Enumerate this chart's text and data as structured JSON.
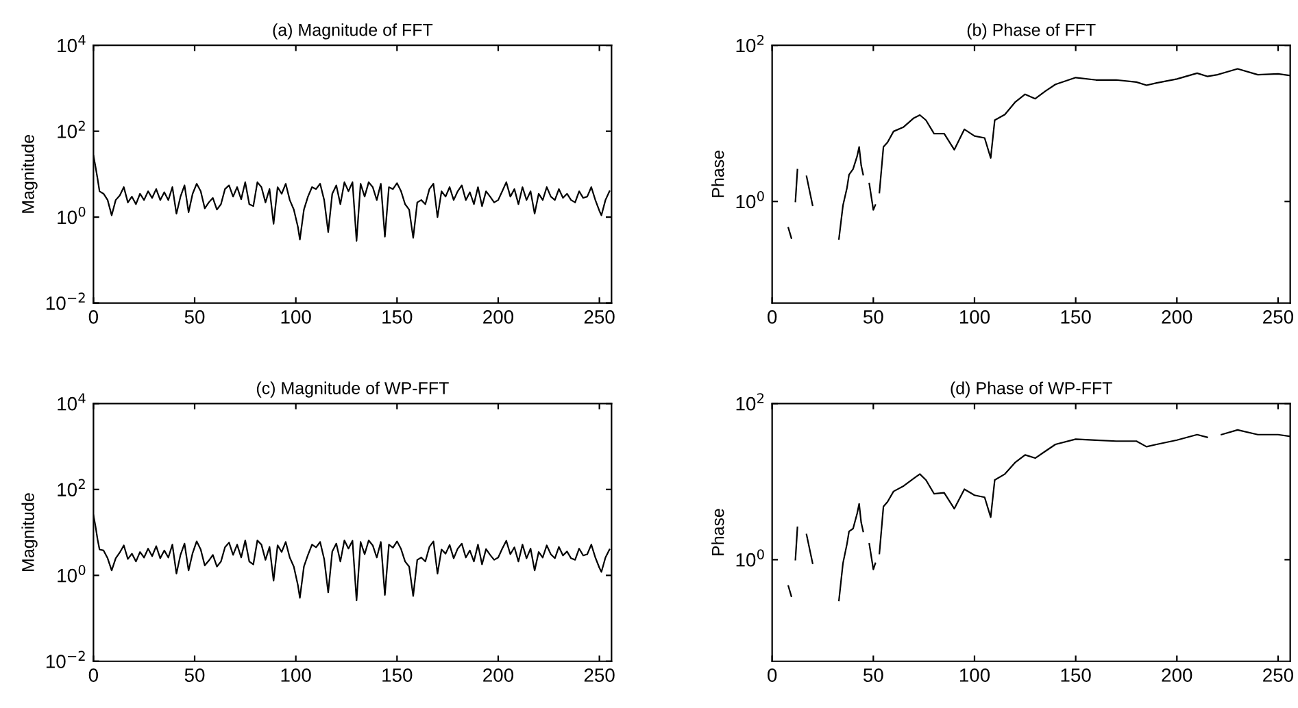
{
  "chart_data": [
    {
      "type": "line",
      "title": "(a) Magnitude of FFT",
      "ylabel": "Magnitude",
      "log": true,
      "xlim": [
        0,
        256
      ],
      "xticks": [
        0,
        50,
        100,
        150,
        200,
        250
      ],
      "ylim": [
        0.01,
        10000
      ],
      "yticks": [
        {
          "value": 0.01,
          "label": "10$^{−2}$"
        },
        {
          "value": 1,
          "label": "10$^{0}$"
        },
        {
          "value": 100,
          "label": "10$^{2}$"
        },
        {
          "value": 10000,
          "label": "10$^{4}$"
        }
      ],
      "series": [
        {
          "color": "#000000",
          "x": [
            0,
            1,
            2,
            3,
            5,
            7,
            9,
            11,
            13,
            15,
            17,
            19,
            21,
            23,
            25,
            27,
            29,
            31,
            33,
            35,
            37,
            39,
            41,
            43,
            45,
            47,
            49,
            51,
            53,
            55,
            57,
            59,
            61,
            63,
            65,
            67,
            69,
            71,
            73,
            75,
            77,
            79,
            81,
            83,
            85,
            87,
            89,
            91,
            93,
            95,
            97,
            99,
            101,
            102,
            104,
            106,
            108,
            110,
            112,
            114,
            116,
            118,
            120,
            122,
            124,
            126,
            128,
            130,
            132,
            134,
            136,
            138,
            140,
            142,
            144,
            146,
            148,
            150,
            152,
            154,
            156,
            158,
            160,
            162,
            164,
            166,
            168,
            170,
            172,
            174,
            176,
            178,
            180,
            182,
            184,
            186,
            188,
            190,
            192,
            194,
            196,
            198,
            200,
            202,
            204,
            206,
            208,
            210,
            212,
            214,
            216,
            218,
            220,
            222,
            224,
            226,
            228,
            230,
            232,
            234,
            236,
            238,
            240,
            242,
            244,
            246,
            248,
            250,
            251,
            253,
            255
          ],
          "values": [
            27,
            15,
            8,
            4,
            3.5,
            2.5,
            1.1,
            2.5,
            3.2,
            5,
            2.2,
            3,
            2,
            3.5,
            2.5,
            4,
            2.8,
            4.5,
            2.5,
            3.8,
            2.5,
            5,
            1.2,
            3,
            5.5,
            1.3,
            3.5,
            6,
            4,
            1.6,
            2.2,
            2.8,
            1.5,
            2,
            4.5,
            5.5,
            3,
            5,
            2.6,
            6.5,
            2,
            1.8,
            6.5,
            5,
            2.2,
            4.5,
            0.7,
            5,
            3.5,
            6,
            2.5,
            1.5,
            0.6,
            0.3,
            1.5,
            3,
            5,
            4.5,
            6,
            2.5,
            0.45,
            3.5,
            5.5,
            2,
            6.5,
            4,
            6.5,
            0.28,
            6,
            3,
            6.5,
            5,
            2.5,
            6,
            0.35,
            5,
            4.5,
            6.2,
            4,
            2,
            1.5,
            0.33,
            2.2,
            2.5,
            2,
            4.5,
            6,
            1,
            4,
            3,
            5,
            2.5,
            4,
            5.5,
            2.5,
            3.8,
            2,
            5,
            1.8,
            4,
            3,
            2.2,
            2.5,
            4,
            6.5,
            3,
            4.5,
            2,
            5,
            2.5,
            4,
            1.2,
            3.5,
            2.5,
            5,
            3,
            2.5,
            4.5,
            2.8,
            3.5,
            2.5,
            2.2,
            4,
            2.8,
            3,
            5,
            2.5,
            1.4,
            1.1,
            2.5,
            4
          ]
        }
      ]
    },
    {
      "type": "line",
      "title": "(b) Phase of FFT",
      "ylabel": "Phase",
      "log": true,
      "xlim": [
        0,
        256
      ],
      "xticks": [
        0,
        50,
        100,
        150,
        200,
        250
      ],
      "ylim": [
        0.05,
        100
      ],
      "yticks": [
        {
          "value": 1,
          "label": "10$^{0}$"
        },
        {
          "value": 100,
          "label": "10$^{2}$"
        }
      ],
      "series": [
        {
          "color": "#000000",
          "x": [
            8,
            9.5,
            10.5,
            11.5,
            12.5,
            14,
            17,
            20,
            25,
            33,
            35,
            37,
            38,
            40,
            42,
            43,
            44,
            45,
            46.5,
            48,
            50,
            51,
            52,
            53,
            55,
            57,
            60,
            65,
            70,
            73,
            76,
            80,
            85,
            90,
            95,
            100,
            105,
            108,
            110,
            115,
            120,
            125,
            130,
            135,
            140,
            150,
            160,
            170,
            180,
            185,
            190,
            200,
            210,
            215,
            220,
            230,
            240,
            250,
            256
          ],
          "values": [
            0.46,
            0.34,
            null,
            1.0,
            2.56,
            null,
            2.1,
            0.89,
            null,
            0.33,
            0.89,
            1.5,
            2.2,
            2.6,
            3.8,
            5.0,
            2.9,
            2.2,
            null,
            1.7,
            0.78,
            0.9,
            null,
            1.3,
            5,
            5.7,
            7.9,
            9,
            11.7,
            12.8,
            11,
            7.4,
            7.4,
            4.6,
            8.4,
            6.9,
            6.5,
            3.6,
            11,
            13,
            18.6,
            23.6,
            20.7,
            25.9,
            31.6,
            38.6,
            36,
            36,
            33.8,
            30.8,
            33,
            37,
            44,
            40,
            42,
            50,
            42,
            43,
            41
          ]
        }
      ]
    },
    {
      "type": "line",
      "title": "(c) Magnitude of WP-FFT",
      "ylabel": "Magnitude",
      "log": true,
      "xlim": [
        0,
        256
      ],
      "xticks": [
        0,
        50,
        100,
        150,
        200,
        250
      ],
      "ylim": [
        0.01,
        10000
      ],
      "yticks": [
        {
          "value": 0.01,
          "label": "10$^{−2}$"
        },
        {
          "value": 1,
          "label": "10$^{0}$"
        },
        {
          "value": 100,
          "label": "10$^{2}$"
        },
        {
          "value": 10000,
          "label": "10$^{4}$"
        }
      ],
      "series": [
        {
          "color": "#000000",
          "x": [
            0,
            1,
            2,
            3,
            5,
            7,
            9,
            11,
            13,
            15,
            17,
            19,
            21,
            23,
            25,
            27,
            29,
            31,
            33,
            35,
            37,
            39,
            41,
            43,
            45,
            47,
            49,
            51,
            53,
            55,
            57,
            59,
            61,
            63,
            65,
            67,
            69,
            71,
            73,
            75,
            77,
            79,
            81,
            83,
            85,
            87,
            89,
            91,
            93,
            95,
            97,
            99,
            101,
            102,
            104,
            106,
            108,
            110,
            112,
            114,
            116,
            118,
            120,
            122,
            124,
            126,
            128,
            130,
            132,
            134,
            136,
            138,
            140,
            142,
            144,
            146,
            148,
            150,
            152,
            154,
            156,
            158,
            160,
            162,
            164,
            166,
            168,
            170,
            172,
            174,
            176,
            178,
            180,
            182,
            184,
            186,
            188,
            190,
            192,
            194,
            196,
            198,
            200,
            202,
            204,
            206,
            208,
            210,
            212,
            214,
            216,
            218,
            220,
            222,
            224,
            226,
            228,
            230,
            232,
            234,
            236,
            238,
            240,
            242,
            244,
            246,
            248,
            250,
            251,
            253,
            255
          ],
          "values": [
            25,
            14,
            7,
            4,
            3.8,
            2.5,
            1.3,
            2.5,
            3.4,
            5,
            2.4,
            3.2,
            2.1,
            3.5,
            2.6,
            4.2,
            2.8,
            4.8,
            2.5,
            3.8,
            2.6,
            5.2,
            1.1,
            3,
            5.5,
            1.3,
            3.3,
            6.2,
            4,
            1.7,
            2.2,
            3,
            1.6,
            2.1,
            4.5,
            5.8,
            3,
            5.2,
            2.6,
            6.5,
            2.1,
            1.8,
            6.5,
            5.2,
            2.3,
            4.6,
            0.75,
            5,
            3.5,
            6,
            2.6,
            1.6,
            0.6,
            0.3,
            1.6,
            3,
            5.2,
            4.5,
            6,
            2.4,
            0.4,
            3.6,
            5.5,
            2.1,
            6.5,
            4.2,
            6.4,
            0.26,
            6,
            3.1,
            6.5,
            5,
            2.6,
            6,
            0.35,
            5.2,
            4.4,
            6.2,
            4.1,
            2.1,
            1.6,
            0.33,
            2.3,
            2.6,
            2.1,
            4.6,
            6.2,
            1.1,
            4,
            3.2,
            5.1,
            2.5,
            4.2,
            5.5,
            2.6,
            3.8,
            2.1,
            5.2,
            1.8,
            4.1,
            3,
            2.3,
            2.6,
            4.2,
            6.4,
            3.1,
            4.5,
            2.1,
            5.2,
            2.5,
            4.2,
            1.3,
            3.5,
            2.6,
            5,
            3.1,
            2.5,
            4.6,
            2.9,
            3.6,
            2.5,
            2.3,
            4.2,
            2.9,
            3.1,
            5.2,
            2.6,
            1.5,
            1.2,
            2.6,
            4
          ]
        }
      ]
    },
    {
      "type": "line",
      "title": "(d) Phase of WP-FFT",
      "ylabel": "Phase",
      "log": true,
      "xlim": [
        0,
        256
      ],
      "xticks": [
        0,
        50,
        100,
        150,
        200,
        250
      ],
      "ylim": [
        0.05,
        100
      ],
      "yticks": [
        {
          "value": 1,
          "label": "10$^{0}$"
        },
        {
          "value": 100,
          "label": "10$^{2}$"
        }
      ],
      "series": [
        {
          "color": "#000000",
          "x": [
            8,
            9.5,
            10.5,
            11.5,
            12.5,
            14,
            17,
            20,
            25,
            33,
            35,
            37,
            38,
            40,
            42,
            43,
            44,
            45,
            46.5,
            48,
            50,
            51,
            52,
            53,
            55,
            57,
            60,
            65,
            70,
            73,
            76,
            80,
            85,
            90,
            95,
            100,
            105,
            108,
            110,
            115,
            120,
            125,
            130,
            135,
            140,
            150,
            160,
            170,
            180,
            185,
            190,
            200,
            210,
            215,
            217,
            222,
            230,
            240,
            250,
            256
          ],
          "values": [
            0.46,
            0.34,
            null,
            1.0,
            2.6,
            null,
            2.1,
            0.9,
            null,
            0.3,
            0.9,
            1.6,
            2.3,
            2.5,
            3.9,
            5.2,
            3.0,
            2.3,
            null,
            1.6,
            0.75,
            0.9,
            null,
            1.2,
            4.8,
            5.5,
            7.5,
            8.8,
            11,
            12.5,
            10.5,
            7.0,
            7.2,
            4.5,
            8.0,
            6.7,
            6.3,
            3.5,
            10.5,
            12.5,
            17.5,
            22,
            20,
            24.5,
            30,
            35,
            34,
            33,
            33,
            28,
            30,
            34,
            40,
            37,
            null,
            40,
            46,
            40,
            40,
            38
          ]
        }
      ]
    }
  ]
}
